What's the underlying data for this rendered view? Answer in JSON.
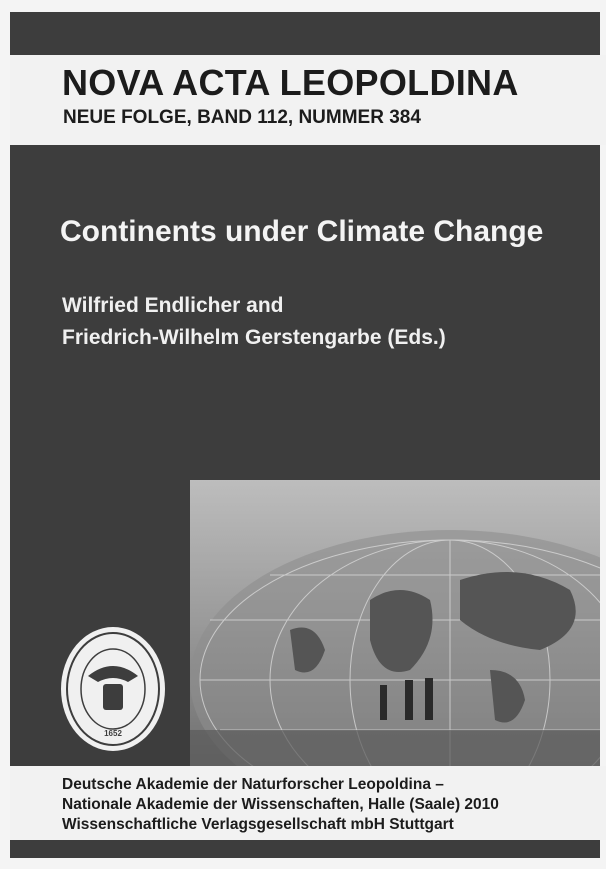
{
  "header": {
    "series": "NOVA ACTA LEOPOLDINA",
    "volume": "NEUE FOLGE, BAND 112, NUMMER 384"
  },
  "title": "Continents under Climate Change",
  "editors": [
    "Wilfried Endlicher and",
    "Friedrich-Wilhelm Gerstengarbe (Eds.)"
  ],
  "seal": {
    "year": "1652"
  },
  "publisher": [
    "Deutsche Akademie der Naturforscher Leopoldina –",
    "Nationale Akademie der Wissenschaften, Halle (Saale) 2010",
    "Wissenschaftliche Verlagsgesellschaft mbH Stuttgart"
  ]
}
